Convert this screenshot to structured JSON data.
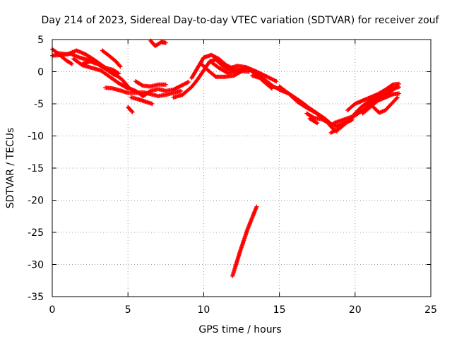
{
  "chart_data": {
    "type": "scatter",
    "title": "Day 214 of 2023, Sidereal Day-to-day VTEC variation (SDTVAR) for receiver zouf",
    "xlabel": "GPS time / hours",
    "ylabel": "SDTVAR / TECUs",
    "xlim": [
      0,
      25
    ],
    "ylim": [
      -35,
      5
    ],
    "xticks": [
      0,
      5,
      10,
      15,
      20,
      25
    ],
    "yticks": [
      5,
      0,
      -5,
      -10,
      -15,
      -20,
      -25,
      -30,
      -35
    ],
    "grid": true,
    "marker": "+",
    "series_color": "#ff0000",
    "tracks": [
      [
        [
          0.0,
          3.5
        ],
        [
          0.4,
          2.8
        ],
        [
          0.9,
          1.8
        ],
        [
          1.3,
          1.2
        ]
      ],
      [
        [
          0.0,
          2.5
        ],
        [
          0.6,
          2.6
        ],
        [
          1.2,
          2.8
        ],
        [
          1.8,
          2.2
        ],
        [
          2.4,
          1.8
        ],
        [
          3.0,
          1.2
        ],
        [
          3.6,
          0.3
        ],
        [
          4.1,
          -0.5
        ]
      ],
      [
        [
          0.3,
          2.9
        ],
        [
          1.0,
          2.7
        ],
        [
          1.6,
          3.3
        ],
        [
          2.2,
          2.7
        ],
        [
          2.8,
          1.8
        ],
        [
          3.4,
          0.8
        ],
        [
          4.0,
          -0.2
        ],
        [
          4.6,
          -1.2
        ],
        [
          5.0,
          -2.3
        ]
      ],
      [
        [
          1.4,
          2.0
        ],
        [
          2.0,
          1.0
        ],
        [
          2.6,
          0.6
        ],
        [
          3.2,
          0.2
        ],
        [
          3.8,
          -0.8
        ],
        [
          4.4,
          -1.8
        ],
        [
          5.0,
          -2.6
        ]
      ],
      [
        [
          2.0,
          1.2
        ],
        [
          2.5,
          1.6
        ],
        [
          3.0,
          1.2
        ],
        [
          3.5,
          0.6
        ],
        [
          4.0,
          0.3
        ],
        [
          4.4,
          -0.3
        ]
      ],
      [
        [
          3.3,
          3.3
        ],
        [
          3.8,
          2.4
        ],
        [
          4.2,
          1.6
        ],
        [
          4.5,
          0.8
        ]
      ],
      [
        [
          3.5,
          -2.5
        ],
        [
          4.0,
          -2.6
        ],
        [
          4.6,
          -3.0
        ],
        [
          5.0,
          -3.3
        ],
        [
          5.5,
          -3.3
        ],
        [
          6.0,
          -3.2
        ],
        [
          6.5,
          -3.5
        ],
        [
          7.0,
          -3.8
        ],
        [
          7.5,
          -3.6
        ],
        [
          8.0,
          -3.3
        ],
        [
          8.5,
          -3.0
        ]
      ],
      [
        [
          5.0,
          -2.5
        ],
        [
          5.5,
          -3.0
        ],
        [
          6.0,
          -3.8
        ],
        [
          6.5,
          -3.0
        ],
        [
          7.0,
          -2.7
        ],
        [
          7.5,
          -3.0
        ],
        [
          8.0,
          -2.8
        ],
        [
          8.5,
          -2.2
        ],
        [
          9.0,
          -1.6
        ]
      ],
      [
        [
          5.5,
          -1.5
        ],
        [
          6.0,
          -2.2
        ],
        [
          6.5,
          -2.3
        ],
        [
          7.0,
          -2.0
        ],
        [
          7.5,
          -2.0
        ]
      ],
      [
        [
          5.2,
          -4.0
        ],
        [
          5.7,
          -4.3
        ],
        [
          6.2,
          -4.7
        ],
        [
          6.6,
          -5.0
        ]
      ],
      [
        [
          5.0,
          -5.5
        ],
        [
          5.3,
          -6.3
        ]
      ],
      [
        [
          6.5,
          4.8
        ],
        [
          6.8,
          4.0
        ],
        [
          7.2,
          4.6
        ],
        [
          7.5,
          4.5
        ]
      ],
      [
        [
          8.0,
          -4.0
        ],
        [
          8.6,
          -3.6
        ],
        [
          9.2,
          -2.4
        ],
        [
          9.6,
          -1.2
        ],
        [
          10.0,
          0.2
        ],
        [
          10.4,
          1.6
        ],
        [
          10.8,
          1.9
        ],
        [
          11.2,
          1.0
        ],
        [
          11.6,
          0.5
        ],
        [
          12.0,
          0.0
        ]
      ],
      [
        [
          9.2,
          -1.0
        ],
        [
          9.6,
          0.6
        ],
        [
          10.0,
          2.2
        ],
        [
          10.5,
          2.6
        ],
        [
          11.0,
          2.0
        ],
        [
          11.5,
          1.0
        ],
        [
          12.0,
          0.4
        ],
        [
          12.5,
          0.1
        ],
        [
          13.0,
          0.0
        ]
      ],
      [
        [
          9.8,
          1.3
        ],
        [
          10.3,
          0.2
        ],
        [
          10.8,
          -0.8
        ],
        [
          11.4,
          -0.8
        ],
        [
          12.0,
          -0.6
        ],
        [
          12.6,
          0.2
        ]
      ],
      [
        [
          10.5,
          1.5
        ],
        [
          11.0,
          0.6
        ],
        [
          11.6,
          -0.2
        ],
        [
          12.2,
          0.1
        ],
        [
          12.8,
          0.6
        ],
        [
          13.4,
          -0.2
        ],
        [
          14.0,
          -1.2
        ],
        [
          14.6,
          -2.3
        ],
        [
          15.2,
          -3.0
        ]
      ],
      [
        [
          11.5,
          0.4
        ],
        [
          12.2,
          0.9
        ],
        [
          12.8,
          0.7
        ],
        [
          13.5,
          0.0
        ],
        [
          14.2,
          -0.8
        ],
        [
          14.8,
          -1.5
        ]
      ],
      [
        [
          13.5,
          -0.5
        ],
        [
          14.0,
          -1.6
        ],
        [
          14.5,
          -2.6
        ]
      ],
      [
        [
          13.2,
          -0.6
        ],
        [
          13.6,
          -0.9
        ]
      ],
      [
        [
          15.0,
          -2.3
        ],
        [
          15.5,
          -3.2
        ],
        [
          16.0,
          -4.0
        ],
        [
          16.5,
          -4.8
        ],
        [
          17.0,
          -5.7
        ],
        [
          17.5,
          -6.5
        ],
        [
          18.0,
          -7.3
        ],
        [
          18.3,
          -7.9
        ]
      ],
      [
        [
          15.0,
          -2.8
        ],
        [
          15.6,
          -3.4
        ],
        [
          16.2,
          -4.7
        ],
        [
          16.8,
          -5.6
        ],
        [
          17.4,
          -6.4
        ],
        [
          18.0,
          -7.4
        ],
        [
          18.5,
          -8.8
        ],
        [
          18.8,
          -9.3
        ]
      ],
      [
        [
          16.8,
          -6.5
        ],
        [
          17.3,
          -7.2
        ],
        [
          17.8,
          -7.4
        ],
        [
          18.3,
          -8.0
        ],
        [
          18.8,
          -8.5
        ],
        [
          19.3,
          -8.0
        ],
        [
          19.8,
          -7.5
        ]
      ],
      [
        [
          17.0,
          -7.3
        ],
        [
          17.5,
          -8.0
        ]
      ],
      [
        [
          18.4,
          -9.5
        ],
        [
          19.0,
          -8.8
        ],
        [
          19.5,
          -7.8
        ],
        [
          20.0,
          -6.8
        ],
        [
          20.5,
          -6.0
        ],
        [
          21.0,
          -5.0
        ],
        [
          21.5,
          -4.0
        ],
        [
          22.0,
          -3.4
        ],
        [
          22.5,
          -2.6
        ],
        [
          22.9,
          -2.4
        ]
      ],
      [
        [
          18.6,
          -8.0
        ],
        [
          19.2,
          -7.5
        ],
        [
          19.8,
          -7.0
        ],
        [
          20.4,
          -5.5
        ],
        [
          21.0,
          -4.5
        ],
        [
          21.6,
          -3.9
        ],
        [
          22.2,
          -3.3
        ],
        [
          22.8,
          -2.3
        ]
      ],
      [
        [
          19.5,
          -6.0
        ],
        [
          20.0,
          -5.0
        ],
        [
          20.5,
          -4.5
        ],
        [
          21.0,
          -4.0
        ],
        [
          21.5,
          -3.5
        ],
        [
          22.0,
          -2.8
        ],
        [
          22.5,
          -2.0
        ],
        [
          22.9,
          -1.9
        ]
      ],
      [
        [
          21.2,
          -5.5
        ],
        [
          21.6,
          -6.4
        ],
        [
          22.0,
          -6.0
        ],
        [
          22.4,
          -5.0
        ],
        [
          22.8,
          -4.0
        ]
      ],
      [
        [
          20.5,
          -6.5
        ],
        [
          21.0,
          -5.5
        ],
        [
          21.5,
          -4.5
        ],
        [
          22.0,
          -4.0
        ],
        [
          22.5,
          -3.5
        ],
        [
          22.9,
          -3.4
        ]
      ],
      [
        [
          11.9,
          -31.8
        ],
        [
          12.4,
          -28.0
        ],
        [
          12.9,
          -24.5
        ],
        [
          13.5,
          -21.0
        ]
      ]
    ]
  }
}
